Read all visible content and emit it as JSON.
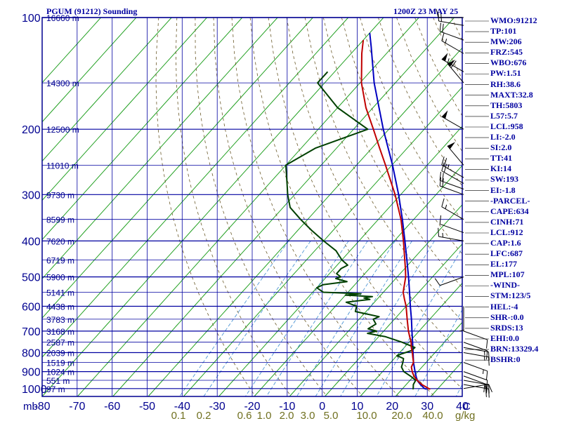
{
  "header": {
    "title": "PGUM (91212) Sounding",
    "time": "1200Z 23 MAY 25"
  },
  "colors": {
    "background": "#ffffff",
    "axes": "#000090",
    "isobar": "#0000a0",
    "isotherm": "#22a022",
    "dry_adiabat": "#6b5a2a",
    "mixing_ratio": "#3a8ad0",
    "temperature": "#c00000",
    "dewpoint": "#004000",
    "parcel": "#0000c0",
    "text": "#0000a0",
    "mixing_label": "#707020"
  },
  "chart_data": {
    "type": "skew-t log-p sounding",
    "pressure_axis_mb": [
      100,
      200,
      300,
      400,
      500,
      600,
      700,
      800,
      900,
      1000
    ],
    "temperature_axis_c": [
      -80,
      -70,
      -60,
      -50,
      -40,
      -30,
      -20,
      -10,
      0,
      10,
      20,
      30,
      40
    ],
    "temperature_axis_labels": [
      "-80",
      "-70",
      "-60",
      "-50",
      "-40",
      "-30",
      "-20",
      "-10",
      "0",
      "10",
      "20",
      "30",
      "40"
    ],
    "pressure_unit_label": "mb",
    "temperature_unit_label": "C",
    "mixing_ratio_labels": [
      {
        "value": 0.1,
        "text": "0.1"
      },
      {
        "value": 0.2,
        "text": "0.2"
      },
      {
        "value": 0.6,
        "text": "0.6"
      },
      {
        "value": 1.0,
        "text": "1.0"
      },
      {
        "value": 2.0,
        "text": "2.0"
      },
      {
        "value": 3.0,
        "text": "3.0"
      },
      {
        "value": 5.0,
        "text": "5.0"
      },
      {
        "value": 10.0,
        "text": "10.0"
      },
      {
        "value": 20.0,
        "text": "20.0"
      },
      {
        "value": 40.0,
        "text": "40.0"
      }
    ],
    "mixing_ratio_unit": "g/kg",
    "height_labels": [
      {
        "p": 100,
        "text": "16660 m"
      },
      {
        "p": 150,
        "text": "14300 m"
      },
      {
        "p": 200,
        "text": "12500 m"
      },
      {
        "p": 250,
        "text": "11010 m"
      },
      {
        "p": 300,
        "text": "9730 m"
      },
      {
        "p": 350,
        "text": "8599 m"
      },
      {
        "p": 400,
        "text": "7620 m"
      },
      {
        "p": 450,
        "text": "6719 m"
      },
      {
        "p": 500,
        "text": "5900 m"
      },
      {
        "p": 550,
        "text": "5141 m"
      },
      {
        "p": 600,
        "text": "4438 m"
      },
      {
        "p": 650,
        "text": "3783 m"
      },
      {
        "p": 700,
        "text": "3168 m"
      },
      {
        "p": 750,
        "text": "2587 m"
      },
      {
        "p": 800,
        "text": "2039 m"
      },
      {
        "p": 850,
        "text": "1519 m"
      },
      {
        "p": 900,
        "text": "1024 m"
      },
      {
        "p": 950,
        "text": "551 m"
      },
      {
        "p": 1000,
        "text": "97 m"
      }
    ],
    "temperature_profile": [
      [
        1004,
        28.0
      ],
      [
        1000,
        27.4
      ],
      [
        975,
        24.4
      ],
      [
        950,
        22.0
      ],
      [
        925,
        20.0
      ],
      [
        900,
        18.4
      ],
      [
        875,
        17.0
      ],
      [
        850,
        16.4
      ],
      [
        825,
        15.0
      ],
      [
        800,
        13.6
      ],
      [
        775,
        12.0
      ],
      [
        750,
        10.6
      ],
      [
        725,
        8.8
      ],
      [
        700,
        7.0
      ],
      [
        650,
        3.6
      ],
      [
        600,
        0.0
      ],
      [
        575,
        -2.2
      ],
      [
        550,
        -4.4
      ],
      [
        500,
        -7.6
      ],
      [
        475,
        -9.8
      ],
      [
        450,
        -12.2
      ],
      [
        400,
        -17.4
      ],
      [
        350,
        -23.6
      ],
      [
        300,
        -31.6
      ],
      [
        250,
        -41.8
      ],
      [
        225,
        -47.8
      ],
      [
        200,
        -54.4
      ],
      [
        175,
        -62.0
      ],
      [
        150,
        -69.6
      ],
      [
        125,
        -77.0
      ],
      [
        115,
        -80.0
      ]
    ],
    "dewpoint_profile": [
      [
        1004,
        23.0
      ],
      [
        1000,
        23.0
      ],
      [
        975,
        22.0
      ],
      [
        950,
        21.6
      ],
      [
        925,
        19.0
      ],
      [
        900,
        16.0
      ],
      [
        875,
        14.2
      ],
      [
        850,
        13.4
      ],
      [
        830,
        12.6
      ],
      [
        815,
        10.0
      ],
      [
        805,
        11.0
      ],
      [
        790,
        12.8
      ],
      [
        775,
        13.0
      ],
      [
        750,
        8.0
      ],
      [
        725,
        2.0
      ],
      [
        710,
        -4.0
      ],
      [
        700,
        -2.0
      ],
      [
        690,
        -5.0
      ],
      [
        670,
        -4.0
      ],
      [
        650,
        -6.0
      ],
      [
        640,
        -5.0
      ],
      [
        620,
        -13.0
      ],
      [
        600,
        -14.0
      ],
      [
        585,
        -18.0
      ],
      [
        575,
        -12.0
      ],
      [
        570,
        -14.0
      ],
      [
        565,
        -12.0
      ],
      [
        560,
        -20.0
      ],
      [
        555,
        -16.0
      ],
      [
        550,
        -27.0
      ],
      [
        535,
        -30.0
      ],
      [
        525,
        -29.0
      ],
      [
        515,
        -23.0
      ],
      [
        505,
        -27.0
      ],
      [
        500,
        -26.0
      ],
      [
        490,
        -28.0
      ],
      [
        475,
        -28.0
      ],
      [
        465,
        -27.0
      ],
      [
        450,
        -30.0
      ],
      [
        425,
        -34.0
      ],
      [
        400,
        -40.0
      ],
      [
        375,
        -46.0
      ],
      [
        350,
        -52.0
      ],
      [
        325,
        -58.0
      ],
      [
        300,
        -62.0
      ],
      [
        280,
        -65.0
      ],
      [
        250,
        -70.0
      ],
      [
        225,
        -66.0
      ],
      [
        200,
        -56.0
      ],
      [
        175,
        -70.0
      ],
      [
        150,
        -82.0
      ],
      [
        140,
        -82.0
      ]
    ],
    "parcel_profile": [
      [
        1004,
        27.0
      ],
      [
        1000,
        26.2
      ],
      [
        975,
        24.0
      ],
      [
        950,
        22.0
      ],
      [
        925,
        20.6
      ],
      [
        900,
        19.2
      ],
      [
        850,
        16.4
      ],
      [
        800,
        13.8
      ],
      [
        750,
        11.0
      ],
      [
        700,
        8.0
      ],
      [
        650,
        4.8
      ],
      [
        600,
        1.2
      ],
      [
        550,
        -2.6
      ],
      [
        500,
        -6.8
      ],
      [
        450,
        -11.6
      ],
      [
        400,
        -17.0
      ],
      [
        350,
        -23.2
      ],
      [
        300,
        -30.6
      ],
      [
        250,
        -39.8
      ],
      [
        200,
        -51.6
      ],
      [
        150,
        -66.0
      ],
      [
        120,
        -76.0
      ],
      [
        110,
        -80.0
      ]
    ],
    "wind_barbs": [
      {
        "p": 1000,
        "dir": 80,
        "spd": 15
      },
      {
        "p": 975,
        "dir": 100,
        "spd": 20
      },
      {
        "p": 950,
        "dir": 100,
        "spd": 20
      },
      {
        "p": 925,
        "dir": 110,
        "spd": 20
      },
      {
        "p": 900,
        "dir": 110,
        "spd": 10
      },
      {
        "p": 850,
        "dir": 110,
        "spd": 15
      },
      {
        "p": 800,
        "dir": 100,
        "spd": 15
      },
      {
        "p": 775,
        "dir": 100,
        "spd": 15
      },
      {
        "p": 750,
        "dir": 110,
        "spd": 10
      },
      {
        "p": 700,
        "dir": 110,
        "spd": 10
      },
      {
        "p": 600,
        "dir": 180,
        "spd": 5
      },
      {
        "p": 500,
        "dir": 250,
        "spd": 10
      },
      {
        "p": 400,
        "dir": 280,
        "spd": 15
      },
      {
        "p": 380,
        "dir": 290,
        "spd": 10
      },
      {
        "p": 350,
        "dir": 300,
        "spd": 15
      },
      {
        "p": 300,
        "dir": 290,
        "spd": 20
      },
      {
        "p": 290,
        "dir": 290,
        "spd": 20
      },
      {
        "p": 280,
        "dir": 300,
        "spd": 20
      },
      {
        "p": 270,
        "dir": 300,
        "spd": 25
      },
      {
        "p": 250,
        "dir": 320,
        "spd": 50
      },
      {
        "p": 200,
        "dir": 300,
        "spd": 50
      },
      {
        "p": 150,
        "dir": 320,
        "spd": 60
      },
      {
        "p": 140,
        "dir": 300,
        "spd": 55
      },
      {
        "p": 125,
        "dir": 300,
        "spd": 15
      },
      {
        "p": 115,
        "dir": 290,
        "spd": 20
      },
      {
        "p": 105,
        "dir": 280,
        "spd": 20
      },
      {
        "p": 100,
        "dir": 270,
        "spd": 10
      }
    ],
    "x_range_c": [
      -80,
      40
    ],
    "p_range_mb": [
      1050,
      100
    ],
    "grid": true
  },
  "indices": [
    "WMO:91212",
    "TP:101",
    "MW:206",
    "FRZ:545",
    "WBO:676",
    "PW:1.51",
    "RH:38.6",
    "MAXT:32.8",
    "TH:5803",
    "L57:5.7",
    "LCL:958",
    "LI:-2.0",
    "SI:2.0",
    "TT:41",
    "KI:14",
    "SW:193",
    "EI:-1.8",
    "-PARCEL-",
    "CAPE:634",
    "CINH:71",
    "LCL:912",
    "CAP:1.6",
    "LFC:687",
    "EL:177",
    "MPL:107",
    "-WIND-",
    "STM:123/5",
    "HEL:-4",
    "SHR-:0.0",
    "SRDS:13",
    "EHI:0.0",
    "BRN:13329.4",
    "BSHR:0"
  ]
}
